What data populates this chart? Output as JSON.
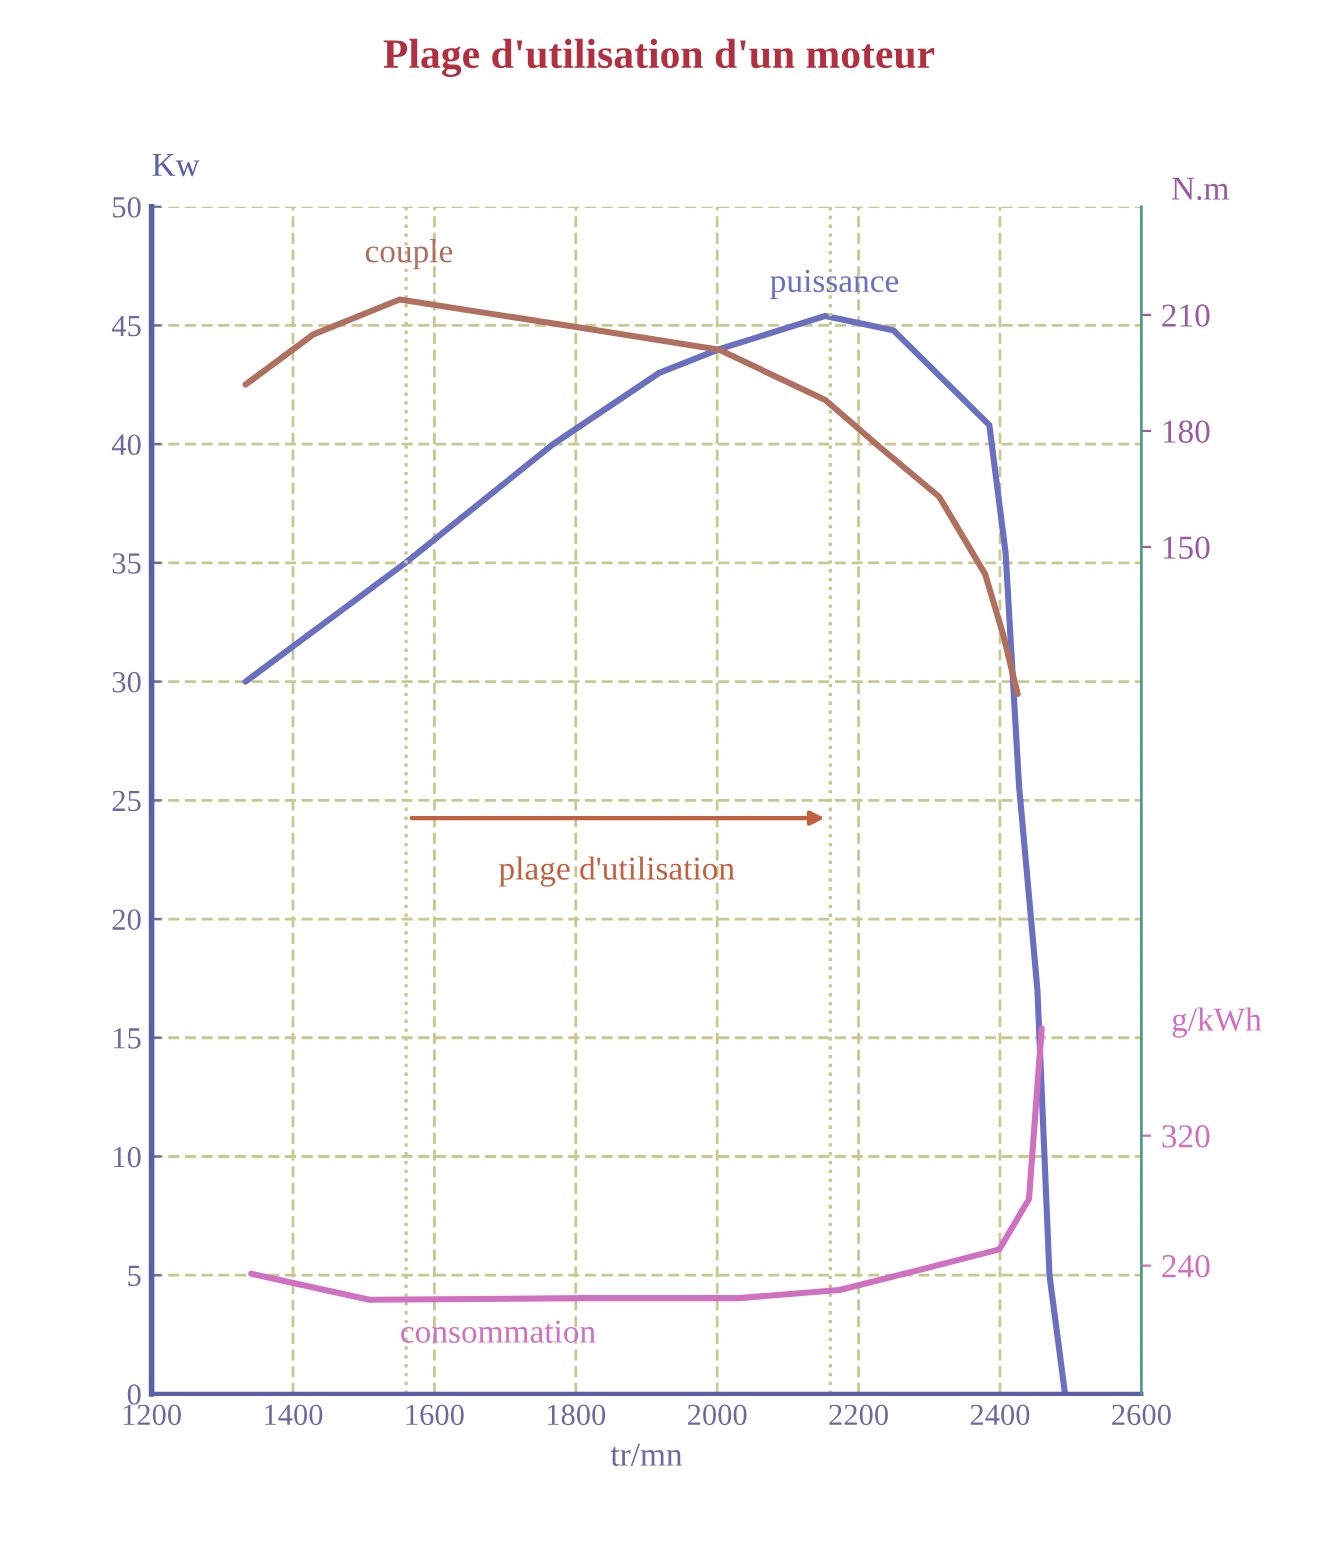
{
  "chart_data": {
    "type": "line",
    "title": "Plage d'utilisation d'un moteur",
    "xlabel": "tr/mn",
    "ylabel": "Kw",
    "y2label": "N.m",
    "y3label": "g/kWh",
    "xlim": [
      1200,
      2600
    ],
    "xticks": [
      1200,
      1400,
      1600,
      1800,
      2000,
      2200,
      2400,
      2600
    ],
    "ylim": [
      0,
      50
    ],
    "yticks": [
      0,
      5,
      10,
      15,
      20,
      25,
      30,
      35,
      40,
      45,
      50
    ],
    "y2lim": [
      -69,
      238
    ],
    "y2ticks": [
      150,
      180,
      210
    ],
    "y3lim": [
      161,
      892
    ],
    "y3ticks": [
      240,
      320
    ],
    "grid": true,
    "marker": "none",
    "line_style": "solid",
    "series": [
      {
        "color": "#6a6fc0",
        "x": [
          1333,
          1559,
          1768,
          1918,
          2003,
          2153,
          2249,
          2385,
          2408,
          2427,
          2453,
          2470,
          2492
        ],
        "values": [
          30,
          35,
          40,
          43,
          44,
          45.4,
          44.8,
          40.8,
          35.4,
          25.6,
          17,
          5,
          0
        ]
      },
      {
        "color": "#b07060",
        "axis": "y2",
        "x": [
          1333,
          1429,
          1551,
          1796,
          2003,
          2153,
          2229,
          2314,
          2379,
          2405,
          2425
        ],
        "values": [
          192,
          205,
          214,
          207,
          201,
          188,
          176,
          163,
          143,
          127,
          112
        ]
      },
      {
        "color": "#d070c0",
        "axis": "y3",
        "x": [
          1341,
          1508,
          1817,
          2031,
          2173,
          2292,
          2399,
          2441,
          2459
        ],
        "values": [
          235,
          219,
          220,
          220,
          225,
          238,
          250,
          281,
          386
        ]
      }
    ],
    "ref_lines": [
      {
        "axis": "x",
        "value": 1560,
        "color": "#c8c890",
        "line_style": "dotted"
      },
      {
        "axis": "x",
        "value": 2160,
        "color": "#c8c890",
        "line_style": "dotted"
      }
    ],
    "annotations": [
      "couple",
      "puissance",
      "consommation",
      "plage d'utilisation"
    ]
  }
}
